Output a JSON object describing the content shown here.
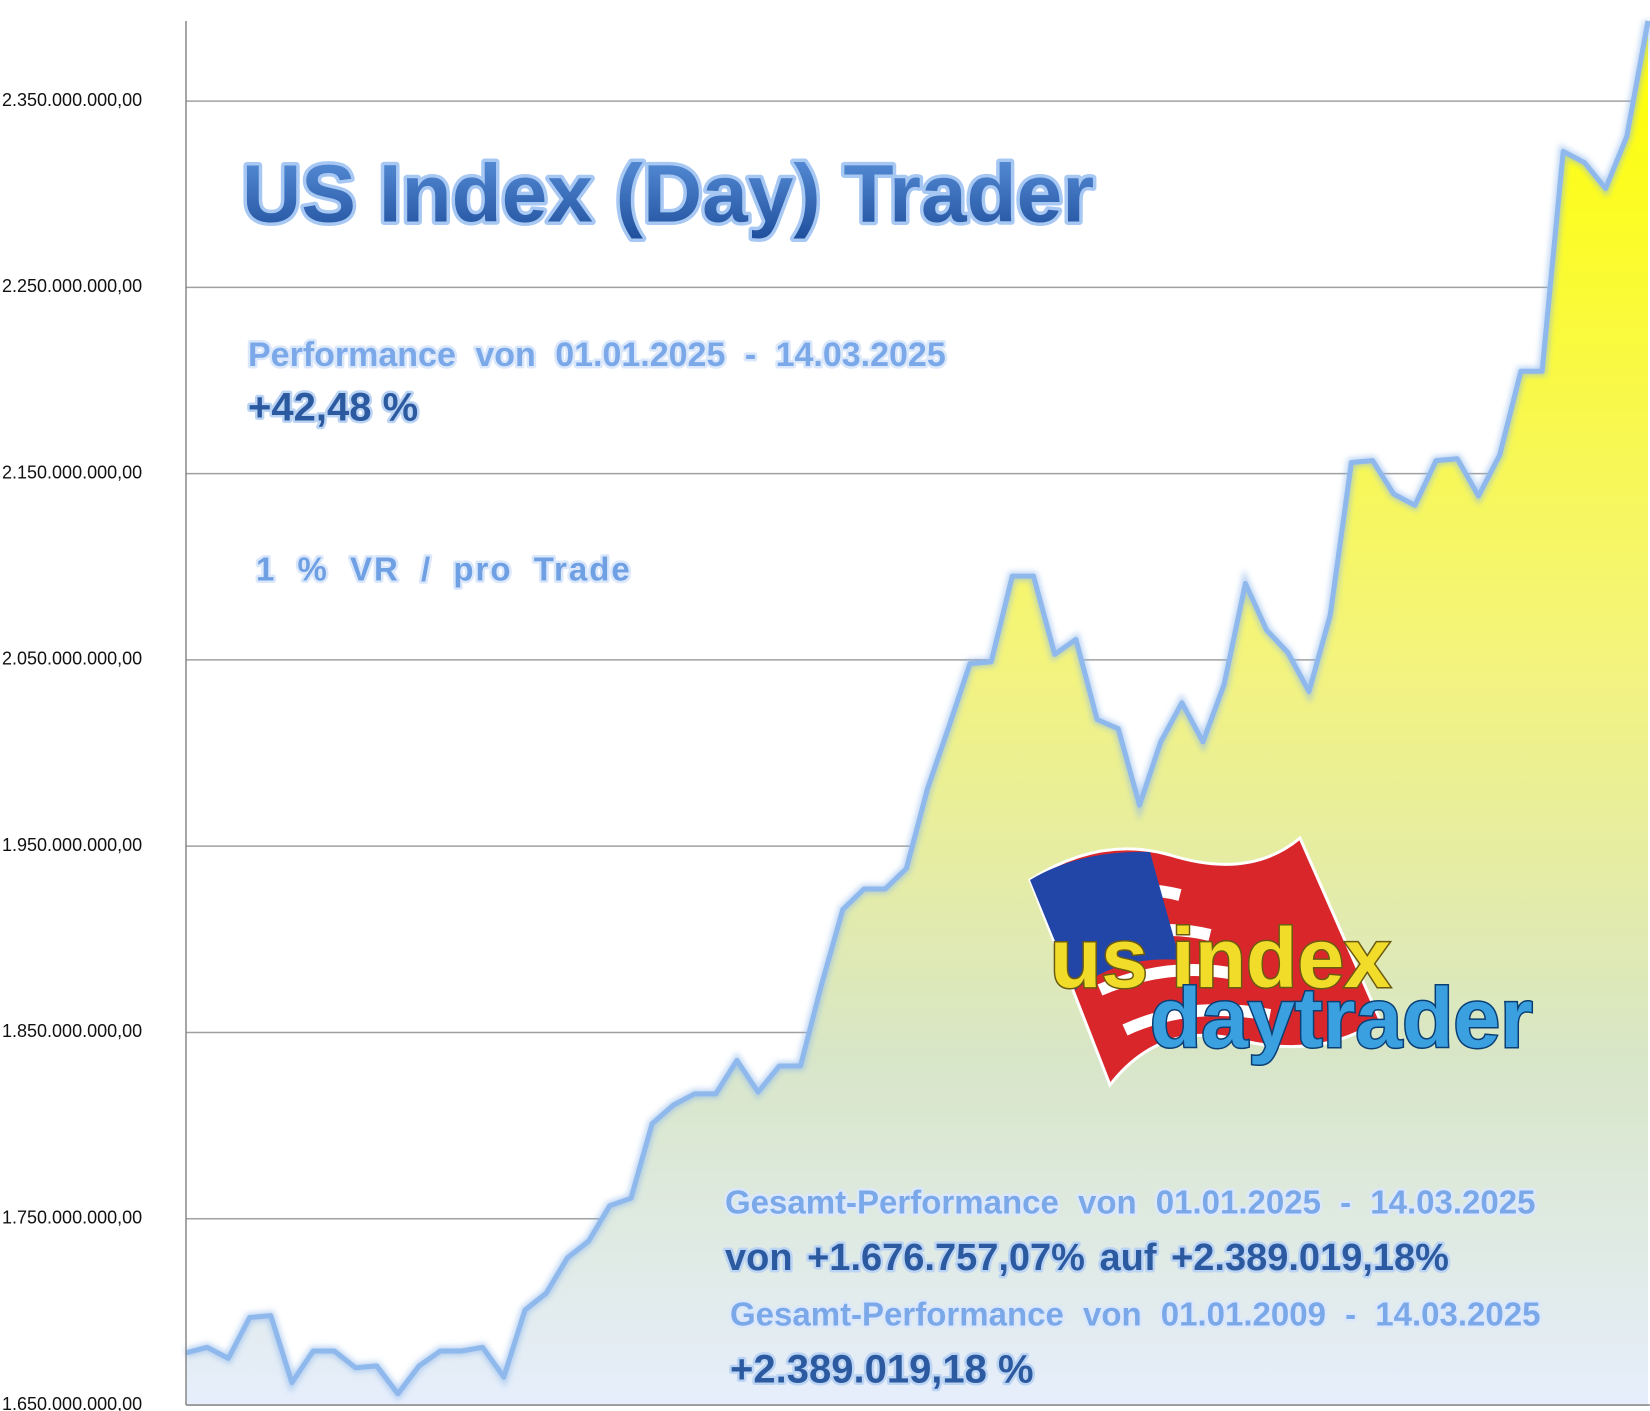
{
  "chart_data": {
    "type": "area",
    "title": "US Index (Day) Trader",
    "annotations": [
      "Performance von 01.01.2025 - 14.03.2025",
      "+42,48 %",
      "1 % VR / pro Trade",
      "Gesamt-Performance von 01.01.2025 - 14.03.2025",
      "von +1.676.757,07% auf +2.389.019,18%",
      "Gesamt-Performance von 01.01.2009 - 14.03.2025",
      "+2.389.019,18 %"
    ],
    "logo": [
      "us index",
      "daytrader"
    ],
    "values": [
      1678000000,
      1681000000,
      1675000000,
      1697000000,
      1698000000,
      1662000000,
      1679000000,
      1679000000,
      1670000000,
      1671000000,
      1656000000,
      1671000000,
      1679000000,
      1679000000,
      1681000000,
      1665000000,
      1701000000,
      1710000000,
      1729000000,
      1738000000,
      1757000000,
      1761000000,
      1801000000,
      1811000000,
      1817000000,
      1817000000,
      1835000000,
      1818000000,
      1832000000,
      1832000000,
      1876000000,
      1916000000,
      1927000000,
      1927000000,
      1938000000,
      1981000000,
      2014000000,
      2048000000,
      2049000000,
      2095000000,
      2095000000,
      2053000000,
      2061000000,
      2018000000,
      2013000000,
      1972000000,
      2006000000,
      2027000000,
      2006000000,
      2037000000,
      2091000000,
      2066000000,
      2054000000,
      2033000000,
      2074000000,
      2156000000,
      2157000000,
      2139000000,
      2133000000,
      2157000000,
      2158000000,
      2138000000,
      2160000000,
      2205000000,
      2205000000,
      2323000000,
      2317000000,
      2303000000,
      2331000000,
      2393000000
    ],
    "color": "#8fb8ec",
    "ylim": [
      1650000000,
      2393000000
    ],
    "yticks": [
      {
        "value": 1650000000,
        "label": "1.650.000.000,00"
      },
      {
        "value": 1750000000,
        "label": "1.750.000.000,00"
      },
      {
        "value": 1850000000,
        "label": "1.850.000.000,00"
      },
      {
        "value": 1950000000,
        "label": "1.950.000.000,00"
      },
      {
        "value": 2050000000,
        "label": "2.050.000.000,00"
      },
      {
        "value": 2150000000,
        "label": "2.150.000.000,00"
      },
      {
        "value": 2250000000,
        "label": "2.250.000.000,00"
      },
      {
        "value": 2350000000,
        "label": "2.350.000.000,00"
      }
    ],
    "grid": true
  }
}
